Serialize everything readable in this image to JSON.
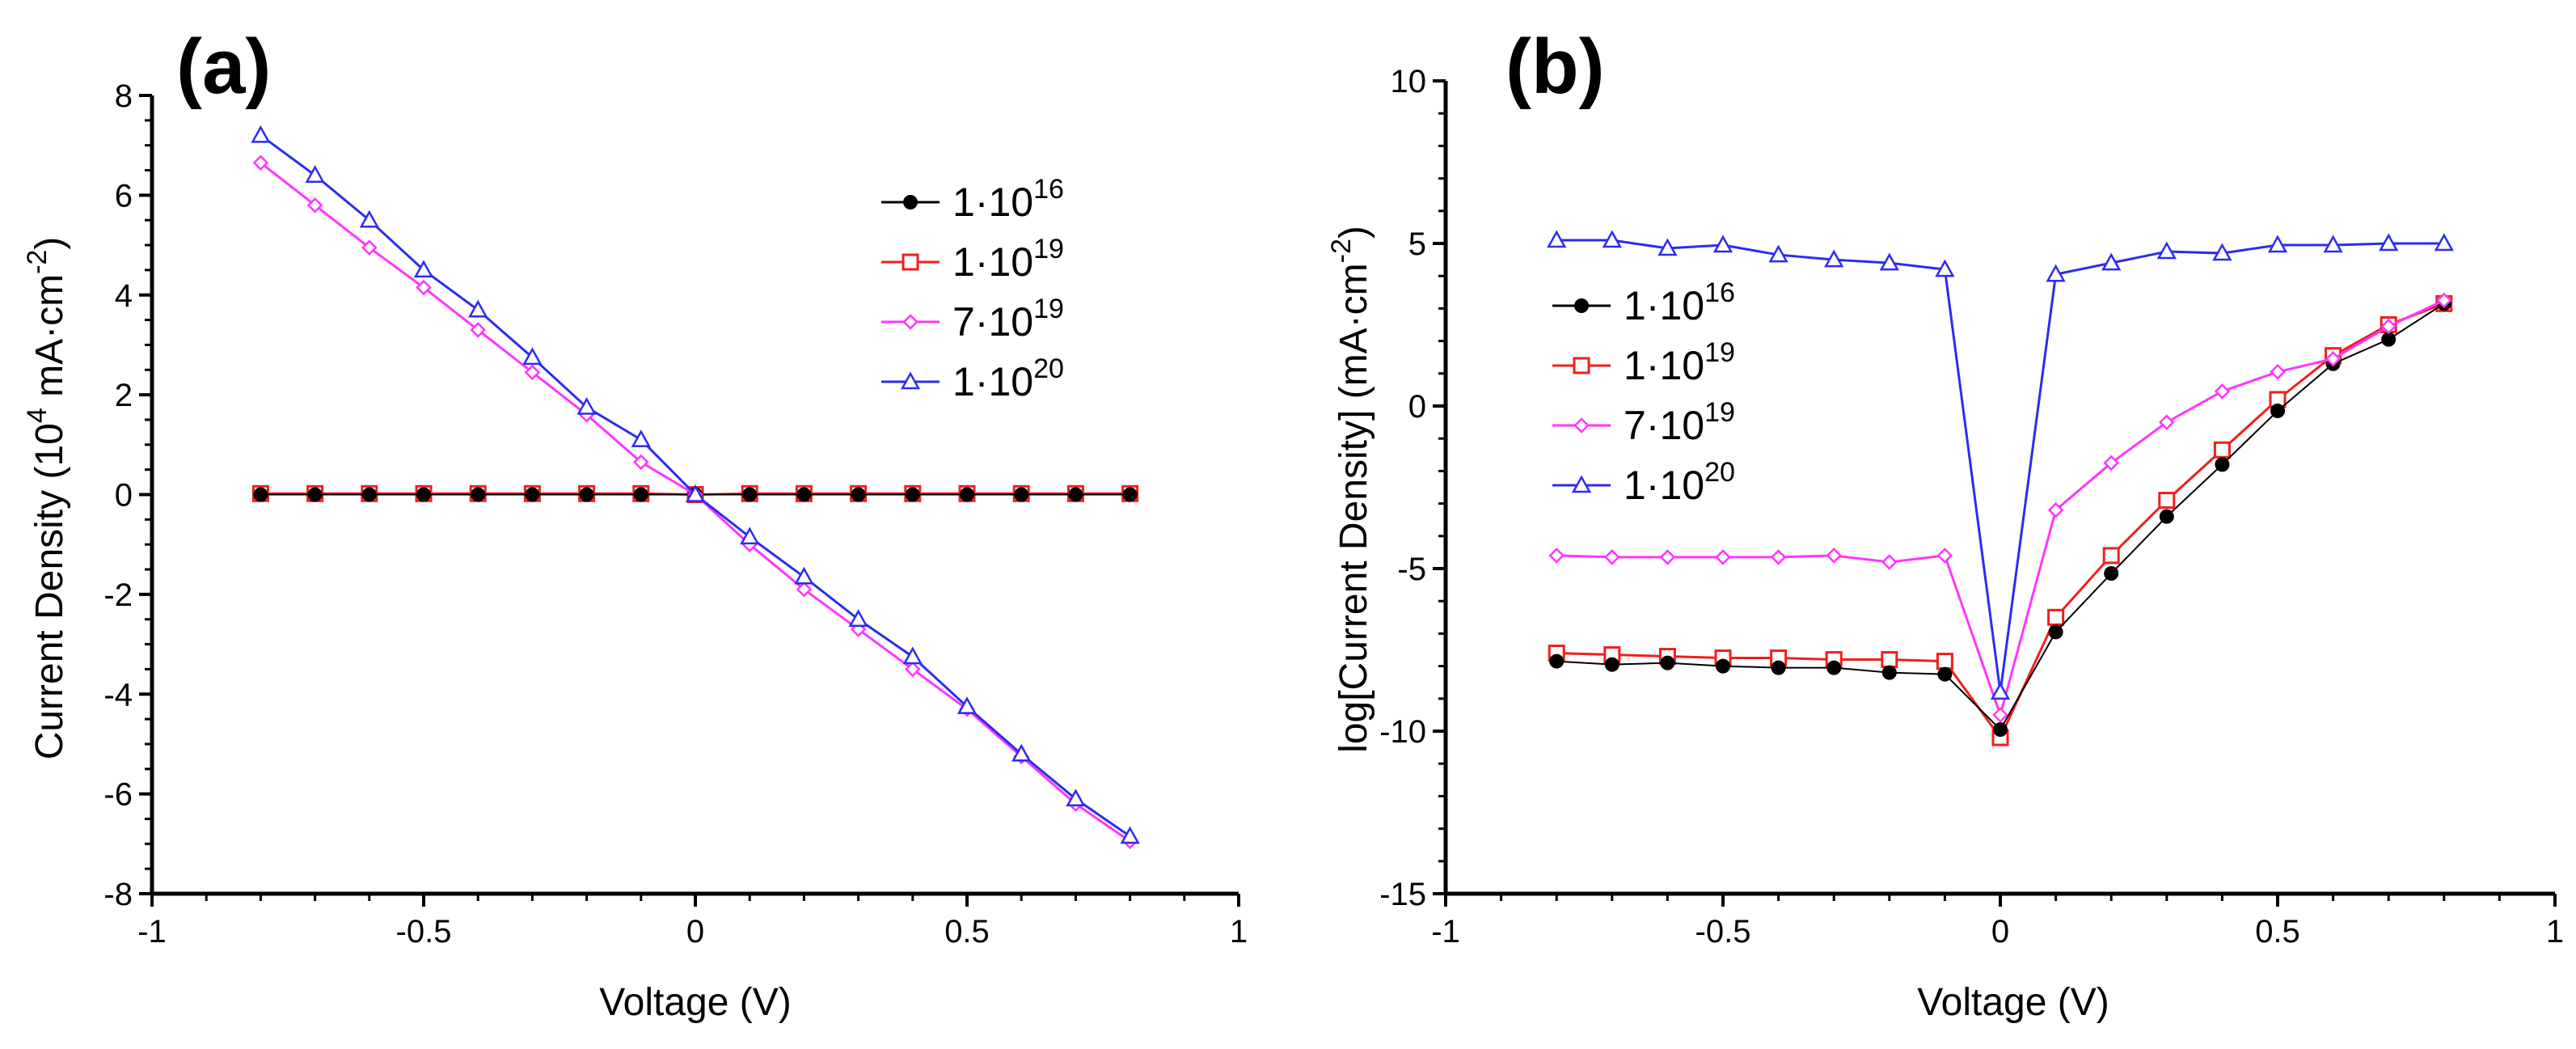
{
  "panels": [
    {
      "id": "a",
      "label": "(a)",
      "xlabel": "Voltage (V)",
      "ylabel": "Current Density (10⁴ mA·cm⁻²)",
      "ylabel_parts": {
        "main": "Current Density (10",
        "sup1": "4",
        "mid": " mA·cm",
        "sup2": "-2",
        "end": ")"
      },
      "xlim": [
        -1,
        1
      ],
      "ylim": [
        -8,
        8
      ],
      "xticks": [
        -1,
        -0.5,
        0,
        0.5,
        1
      ],
      "xtick_labels": [
        "-1",
        "-0.5",
        "0",
        "0.5",
        "1"
      ],
      "yticks": [
        -8,
        -6,
        -4,
        -2,
        0,
        2,
        4,
        6,
        8
      ],
      "ytick_labels": [
        "-8",
        "-6",
        "-4",
        "-2",
        "0",
        "2",
        "4",
        "6",
        "8"
      ]
    },
    {
      "id": "b",
      "label": "(b)",
      "xlabel": "Voltage (V)",
      "ylabel": "log[Current Density] (mA·cm⁻²)",
      "ylabel_parts": {
        "main": "log[Current Density] (mA·cm",
        "sup1": "-2",
        "mid": "",
        "sup2": "",
        "end": ")"
      },
      "xlim": [
        -1,
        1
      ],
      "ylim": [
        -15,
        10
      ],
      "xticks": [
        -1,
        -0.5,
        0,
        0.5,
        1
      ],
      "xtick_labels": [
        "-1",
        "-0.5",
        "0",
        "0.5",
        "1"
      ],
      "yticks": [
        -15,
        -10,
        -5,
        0,
        5,
        10
      ],
      "ytick_labels": [
        "-15",
        "-10",
        "-5",
        "0",
        "5",
        "10"
      ]
    }
  ],
  "legend": [
    {
      "base": "1·10",
      "exp": "16",
      "color": "#000000",
      "marker": "filled-circle"
    },
    {
      "base": "1·10",
      "exp": "19",
      "color": "#f21e1e",
      "marker": "open-square"
    },
    {
      "base": "7·10",
      "exp": "19",
      "color": "#ff35ff",
      "marker": "open-diamond"
    },
    {
      "base": "1·10",
      "exp": "20",
      "color": "#2c2cf0",
      "marker": "open-triangle"
    }
  ],
  "chart_data": [
    {
      "type": "line",
      "panel": "a",
      "title": "",
      "xlabel": "Voltage (V)",
      "ylabel": "Current Density (10⁴ mA·cm⁻²)",
      "xlim": [
        -1,
        1
      ],
      "ylim": [
        -8,
        8
      ],
      "x": [
        -0.8,
        -0.7,
        -0.6,
        -0.5,
        -0.4,
        -0.3,
        -0.2,
        -0.1,
        0,
        0.1,
        0.2,
        0.3,
        0.4,
        0.5,
        0.6,
        0.7,
        0.8
      ],
      "series": [
        {
          "name": "1·10^16",
          "values": [
            0,
            0,
            0,
            0,
            0,
            0,
            0,
            0,
            0,
            0,
            0,
            0,
            0,
            0,
            0,
            0,
            0
          ]
        },
        {
          "name": "1·10^19",
          "values": [
            0.02,
            0.02,
            0.02,
            0.02,
            0.02,
            0.02,
            0.02,
            0.02,
            0,
            0.02,
            0.02,
            0.02,
            0.02,
            0.02,
            0.02,
            0.02,
            0.02
          ]
        },
        {
          "name": "7·10^19",
          "values": [
            6.65,
            5.8,
            4.95,
            4.15,
            3.3,
            2.45,
            1.6,
            0.65,
            0,
            -1.0,
            -1.9,
            -2.7,
            -3.5,
            -4.3,
            -5.25,
            -6.2,
            -6.95
          ]
        },
        {
          "name": "1·10^20",
          "values": [
            7.2,
            6.4,
            5.5,
            4.5,
            3.7,
            2.75,
            1.75,
            1.1,
            0,
            -0.85,
            -1.65,
            -2.5,
            -3.25,
            -4.25,
            -5.2,
            -6.1,
            -6.85
          ]
        }
      ]
    },
    {
      "type": "line",
      "panel": "b",
      "title": "",
      "xlabel": "Voltage (V)",
      "ylabel": "log[Current Density] (mA·cm⁻²)",
      "xlim": [
        -1,
        1
      ],
      "ylim": [
        -15,
        10
      ],
      "x": [
        -0.8,
        -0.7,
        -0.6,
        -0.5,
        -0.4,
        -0.3,
        -0.2,
        -0.1,
        0,
        0.1,
        0.2,
        0.3,
        0.4,
        0.5,
        0.6,
        0.7,
        0.8
      ],
      "series": [
        {
          "name": "1·10^16",
          "values": [
            -7.85,
            -7.95,
            -7.9,
            -8.0,
            -8.05,
            -8.05,
            -8.2,
            -8.25,
            -9.95,
            -6.95,
            -5.15,
            -3.4,
            -1.8,
            -0.15,
            1.3,
            2.05,
            3.15
          ]
        },
        {
          "name": "1·10^19",
          "values": [
            -7.6,
            -7.65,
            -7.7,
            -7.75,
            -7.75,
            -7.8,
            -7.8,
            -7.85,
            -10.2,
            -6.5,
            -4.6,
            -2.9,
            -1.35,
            0.2,
            1.55,
            2.5,
            3.15
          ]
        },
        {
          "name": "7·10^19",
          "values": [
            -4.6,
            -4.65,
            -4.65,
            -4.65,
            -4.65,
            -4.6,
            -4.8,
            -4.6,
            -9.5,
            -3.2,
            -1.75,
            -0.5,
            0.45,
            1.05,
            1.45,
            2.45,
            3.25
          ]
        },
        {
          "name": "1·10^20",
          "values": [
            5.1,
            5.1,
            4.85,
            4.95,
            4.65,
            4.5,
            4.4,
            4.2,
            -8.8,
            4.05,
            4.4,
            4.75,
            4.7,
            4.95,
            4.95,
            5.0,
            5.0
          ]
        }
      ]
    }
  ]
}
